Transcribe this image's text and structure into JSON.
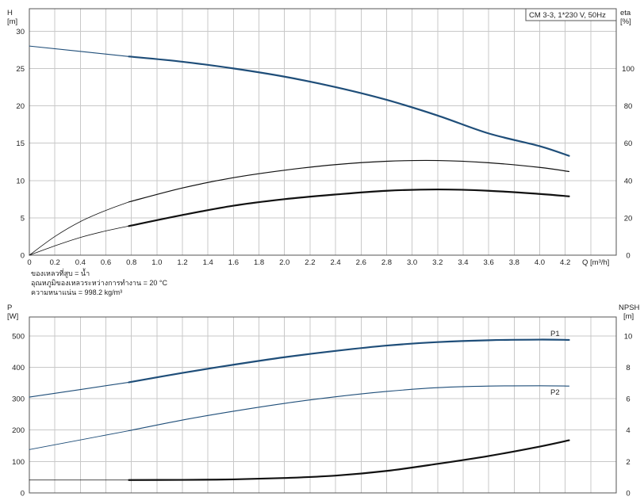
{
  "chart_data": [
    {
      "type": "line",
      "title": "CM 3-3, 1*230 V, 50Hz",
      "xlabel": "Q [m³/h]",
      "ylabel_left": [
        "H",
        "[m]"
      ],
      "ylabel_right": [
        "eta",
        "[%]"
      ],
      "xlim": [
        0,
        4.6
      ],
      "ylim_left": [
        0,
        33
      ],
      "ylim_right": [
        0,
        132
      ],
      "xticks": [
        "0",
        "0.2",
        "0.4",
        "0.6",
        "0.8",
        "1.0",
        "1.2",
        "1.4",
        "1.6",
        "1.8",
        "2.0",
        "2.2",
        "2.4",
        "2.6",
        "2.8",
        "3.0",
        "3.2",
        "3.4",
        "3.6",
        "3.8",
        "4.0",
        "4.2"
      ],
      "yticks_left": [
        "0",
        "5",
        "10",
        "15",
        "20",
        "25",
        "30"
      ],
      "yticks_right": [
        "0",
        "20",
        "40",
        "60",
        "80",
        "100"
      ],
      "grid": true,
      "series": [
        {
          "axis": "left",
          "color": "#1f4e79",
          "width": 1.1,
          "x": [
            0,
            0.78
          ],
          "y": [
            28.0,
            26.6
          ]
        },
        {
          "axis": "left",
          "color": "#1f4e79",
          "width": 2.2,
          "x": [
            0.78,
            1.2,
            1.6,
            2.0,
            2.4,
            2.8,
            3.2,
            3.6,
            4.0,
            4.23
          ],
          "y": [
            26.6,
            25.9,
            25.0,
            23.9,
            22.5,
            20.8,
            18.7,
            16.3,
            14.6,
            13.3
          ]
        },
        {
          "axis": "right",
          "color": "#111111",
          "width": 0.8,
          "x": [
            0,
            0.2,
            0.4,
            0.6,
            0.78
          ],
          "y": [
            0,
            10,
            18,
            24,
            28.5
          ]
        },
        {
          "axis": "right",
          "color": "#111111",
          "width": 1.2,
          "x": [
            0.78,
            1.2,
            1.6,
            2.0,
            2.4,
            2.8,
            3.2,
            3.6,
            4.0,
            4.23
          ],
          "y": [
            28.5,
            36,
            41.5,
            45.5,
            48.5,
            50.3,
            50.7,
            49.5,
            47,
            44.8
          ]
        },
        {
          "axis": "right",
          "color": "#111111",
          "width": 0.8,
          "x": [
            0,
            0.2,
            0.4,
            0.6,
            0.78
          ],
          "y": [
            0,
            5,
            9.5,
            13,
            15.6
          ]
        },
        {
          "axis": "right",
          "color": "#111111",
          "width": 2.2,
          "x": [
            0.78,
            1.2,
            1.6,
            2.0,
            2.4,
            2.8,
            3.2,
            3.6,
            4.0,
            4.23
          ],
          "y": [
            15.6,
            21.5,
            26.5,
            30,
            32.5,
            34.5,
            35.2,
            34.5,
            32.8,
            31.5
          ]
        }
      ]
    },
    {
      "type": "line",
      "xlabel": "",
      "ylabel_left": [
        "P",
        "[W]"
      ],
      "ylabel_right": [
        "NPSH",
        "[m]"
      ],
      "xlim": [
        0,
        4.6
      ],
      "ylim_left": [
        0,
        560
      ],
      "ylim_right": [
        0,
        11.2
      ],
      "yticks_left": [
        "0",
        "100",
        "200",
        "300",
        "400",
        "500"
      ],
      "yticks_right": [
        "0",
        "2",
        "4",
        "6",
        "8",
        "10"
      ],
      "grid": true,
      "series": [
        {
          "axis": "left",
          "color": "#1f4e79",
          "width": 1.1,
          "x": [
            0,
            0.78
          ],
          "y": [
            305,
            352
          ]
        },
        {
          "axis": "left",
          "color": "#1f4e79",
          "width": 2.2,
          "name": "P1",
          "x": [
            0.78,
            1.2,
            1.6,
            2.0,
            2.4,
            2.8,
            3.2,
            3.6,
            4.0,
            4.23
          ],
          "y": [
            352,
            382,
            408,
            432,
            452,
            469,
            480,
            486,
            488,
            487
          ]
        },
        {
          "axis": "left",
          "color": "#1f4e79",
          "width": 0.9,
          "x": [
            0,
            0.78
          ],
          "y": [
            138,
            198
          ]
        },
        {
          "axis": "left",
          "color": "#1f4e79",
          "width": 1.1,
          "name": "P2",
          "x": [
            0.78,
            1.2,
            1.6,
            2.0,
            2.4,
            2.8,
            3.2,
            3.6,
            4.0,
            4.23
          ],
          "y": [
            198,
            232,
            260,
            285,
            306,
            323,
            335,
            340,
            341,
            340
          ]
        },
        {
          "axis": "right",
          "color": "#111111",
          "width": 0.8,
          "x": [
            0,
            0.78
          ],
          "y": [
            0.82,
            0.82
          ]
        },
        {
          "axis": "right",
          "color": "#111111",
          "width": 2.2,
          "x": [
            0.78,
            1.2,
            1.6,
            2.0,
            2.4,
            2.8,
            3.2,
            3.6,
            4.0,
            4.23
          ],
          "y": [
            0.82,
            0.83,
            0.86,
            0.95,
            1.1,
            1.4,
            1.85,
            2.35,
            2.95,
            3.35
          ]
        }
      ]
    }
  ],
  "notes": [
    "ของเหลวที่สูบ = น้ำ",
    "อุณหภูมิของเหลวระหว่างการทำงาน = 20 °C",
    "ความหนาแน่น = 998.2 kg/m³"
  ]
}
